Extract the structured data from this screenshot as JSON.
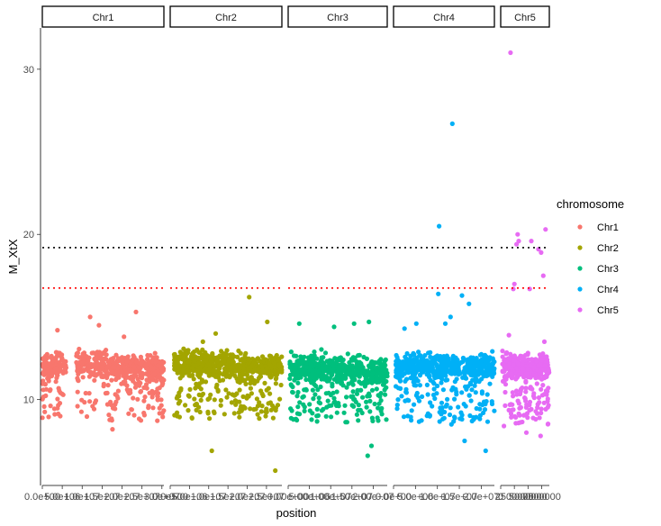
{
  "chart_data": {
    "type": "scatter",
    "facet_by": "chromosome",
    "xlabel": "position",
    "ylabel": "M_XtX",
    "ylim": [
      4.8,
      32.5
    ],
    "y_ticks": [
      10,
      20,
      30
    ],
    "y_tick_labels": [
      "10",
      "20",
      "30"
    ],
    "grid": false,
    "legend_title": "chromosome",
    "legend_position": "right",
    "thresholds": [
      {
        "value": 19.2,
        "color": "#000000",
        "style": "dotted"
      },
      {
        "value": 16.75,
        "color": "#ff0000",
        "style": "dotted"
      }
    ],
    "panels": [
      {
        "label": "Chr1",
        "color": "#F8766D",
        "xlim": [
          0,
          30500000
        ],
        "x_tick_labels": [
          "0.0e+00",
          "5.0e+06",
          "1.0e+07",
          "1.5e+07",
          "2.0e+07",
          "2.5e+07",
          "3.0e+07"
        ],
        "x_tick_values": [
          0,
          5000000,
          10000000,
          15000000,
          20000000,
          25000000,
          30000000
        ],
        "dense_band": {
          "segments": [
            [
              0,
              6000000
            ],
            [
              8500000,
              30500000
            ]
          ],
          "count": 700,
          "center": 12.0,
          "spread": 0.9,
          "drift": 0.15,
          "tail_frac": 0.22,
          "tail_min": 8.7,
          "tail_max": 11.8
        },
        "points": [
          {
            "x": 3800000,
            "y": 14.2
          },
          {
            "x": 12000000,
            "y": 15.0
          },
          {
            "x": 14200000,
            "y": 14.5
          },
          {
            "x": 23500000,
            "y": 15.3
          },
          {
            "x": 20500000,
            "y": 13.8
          },
          {
            "x": 17600000,
            "y": 8.2
          },
          {
            "x": 4500000,
            "y": 9.0
          },
          {
            "x": 12600000,
            "y": 9.6
          },
          {
            "x": 27800000,
            "y": 9.5
          }
        ]
      },
      {
        "label": "Chr2",
        "color": "#A3A500",
        "xlim": [
          0,
          29000000
        ],
        "x_tick_labels": [
          "0.0e+00",
          "5.0e+06",
          "1.0e+07",
          "1.5e+07",
          "2.0e+07",
          "2.5e+07"
        ],
        "x_tick_values": [
          0,
          5000000,
          10000000,
          15000000,
          20000000,
          25000000
        ],
        "dense_band": {
          "segments": [
            [
              1000000,
              29000000
            ]
          ],
          "count": 700,
          "center": 12.1,
          "spread": 0.9,
          "drift": 0.1,
          "tail_frac": 0.22,
          "tail_min": 8.8,
          "tail_max": 11.8
        },
        "points": [
          {
            "x": 10800000,
            "y": 6.9
          },
          {
            "x": 27300000,
            "y": 5.7
          },
          {
            "x": 20500000,
            "y": 16.2
          },
          {
            "x": 11800000,
            "y": 14.0
          },
          {
            "x": 25200000,
            "y": 14.7
          },
          {
            "x": 8500000,
            "y": 13.5
          },
          {
            "x": 19400000,
            "y": 9.5
          },
          {
            "x": 24800000,
            "y": 9.0
          }
        ]
      },
      {
        "label": "Chr3",
        "color": "#00BF7D",
        "xlim": [
          0,
          23300000
        ],
        "x_tick_labels": [
          "0.00e+00",
          "5.00e+06",
          "1.00e+07",
          "1.50e+07",
          "2.00e+07"
        ],
        "x_tick_values": [
          0,
          5000000,
          10000000,
          15000000,
          20000000
        ],
        "dense_band": {
          "segments": [
            [
              300000,
              23300000
            ]
          ],
          "count": 600,
          "center": 11.8,
          "spread": 0.9,
          "drift": 0.05,
          "tail_frac": 0.22,
          "tail_min": 8.6,
          "tail_max": 11.5
        },
        "points": [
          {
            "x": 2600000,
            "y": 14.6
          },
          {
            "x": 10800000,
            "y": 14.4
          },
          {
            "x": 15500000,
            "y": 14.6
          },
          {
            "x": 19000000,
            "y": 14.7
          },
          {
            "x": 19600000,
            "y": 7.2
          },
          {
            "x": 18700000,
            "y": 6.6
          },
          {
            "x": 1200000,
            "y": 8.8
          },
          {
            "x": 21000000,
            "y": 8.9
          }
        ]
      },
      {
        "label": "Chr4",
        "color": "#00B0F6",
        "xlim": [
          0,
          23000000
        ],
        "x_tick_labels": [
          "0.0e+00",
          "5.0e+06",
          "1.0e+07",
          "1.5e+07",
          "2.0e+07"
        ],
        "x_tick_values": [
          0,
          5000000,
          10000000,
          15000000,
          20000000
        ],
        "dense_band": {
          "segments": [
            [
              500000,
              23000000
            ]
          ],
          "count": 600,
          "center": 12.0,
          "spread": 0.85,
          "drift": 0.05,
          "tail_frac": 0.22,
          "tail_min": 8.6,
          "tail_max": 11.6
        },
        "points": [
          {
            "x": 13400000,
            "y": 26.7
          },
          {
            "x": 10400000,
            "y": 20.5
          },
          {
            "x": 10200000,
            "y": 16.4
          },
          {
            "x": 15600000,
            "y": 16.3
          },
          {
            "x": 13000000,
            "y": 15.0
          },
          {
            "x": 17200000,
            "y": 15.8
          },
          {
            "x": 5200000,
            "y": 14.6
          },
          {
            "x": 11800000,
            "y": 14.6
          },
          {
            "x": 2500000,
            "y": 14.3
          },
          {
            "x": 16200000,
            "y": 7.5
          },
          {
            "x": 21000000,
            "y": 6.9
          },
          {
            "x": 13200000,
            "y": 8.5
          }
        ]
      },
      {
        "label": "Chr5",
        "color": "#E76BF3",
        "xlim": [
          0,
          8900000
        ],
        "x_tick_labels": [
          "0",
          "2500000",
          "5000000",
          "7500000"
        ],
        "x_tick_values": [
          0,
          2500000,
          5000000,
          7500000
        ],
        "dense_band": {
          "segments": [
            [
              300000,
              8900000
            ]
          ],
          "count": 380,
          "center": 12.0,
          "spread": 0.8,
          "drift": 0.05,
          "tail_frac": 0.25,
          "tail_min": 8.5,
          "tail_max": 11.5
        },
        "points": [
          {
            "x": 1800000,
            "y": 31.0
          },
          {
            "x": 3100000,
            "y": 20.0
          },
          {
            "x": 3300000,
            "y": 19.6
          },
          {
            "x": 2900000,
            "y": 19.4
          },
          {
            "x": 5600000,
            "y": 19.6
          },
          {
            "x": 8200000,
            "y": 20.3
          },
          {
            "x": 6900000,
            "y": 19.1
          },
          {
            "x": 7400000,
            "y": 18.9
          },
          {
            "x": 2500000,
            "y": 17.0
          },
          {
            "x": 2300000,
            "y": 16.7
          },
          {
            "x": 5300000,
            "y": 16.7
          },
          {
            "x": 7800000,
            "y": 17.5
          },
          {
            "x": 1500000,
            "y": 13.9
          },
          {
            "x": 4700000,
            "y": 8.0
          },
          {
            "x": 7300000,
            "y": 7.8
          },
          {
            "x": 600000,
            "y": 8.4
          },
          {
            "x": 8000000,
            "y": 13.5
          }
        ]
      }
    ],
    "legend_items": [
      "Chr1",
      "Chr2",
      "Chr3",
      "Chr4",
      "Chr5"
    ]
  }
}
